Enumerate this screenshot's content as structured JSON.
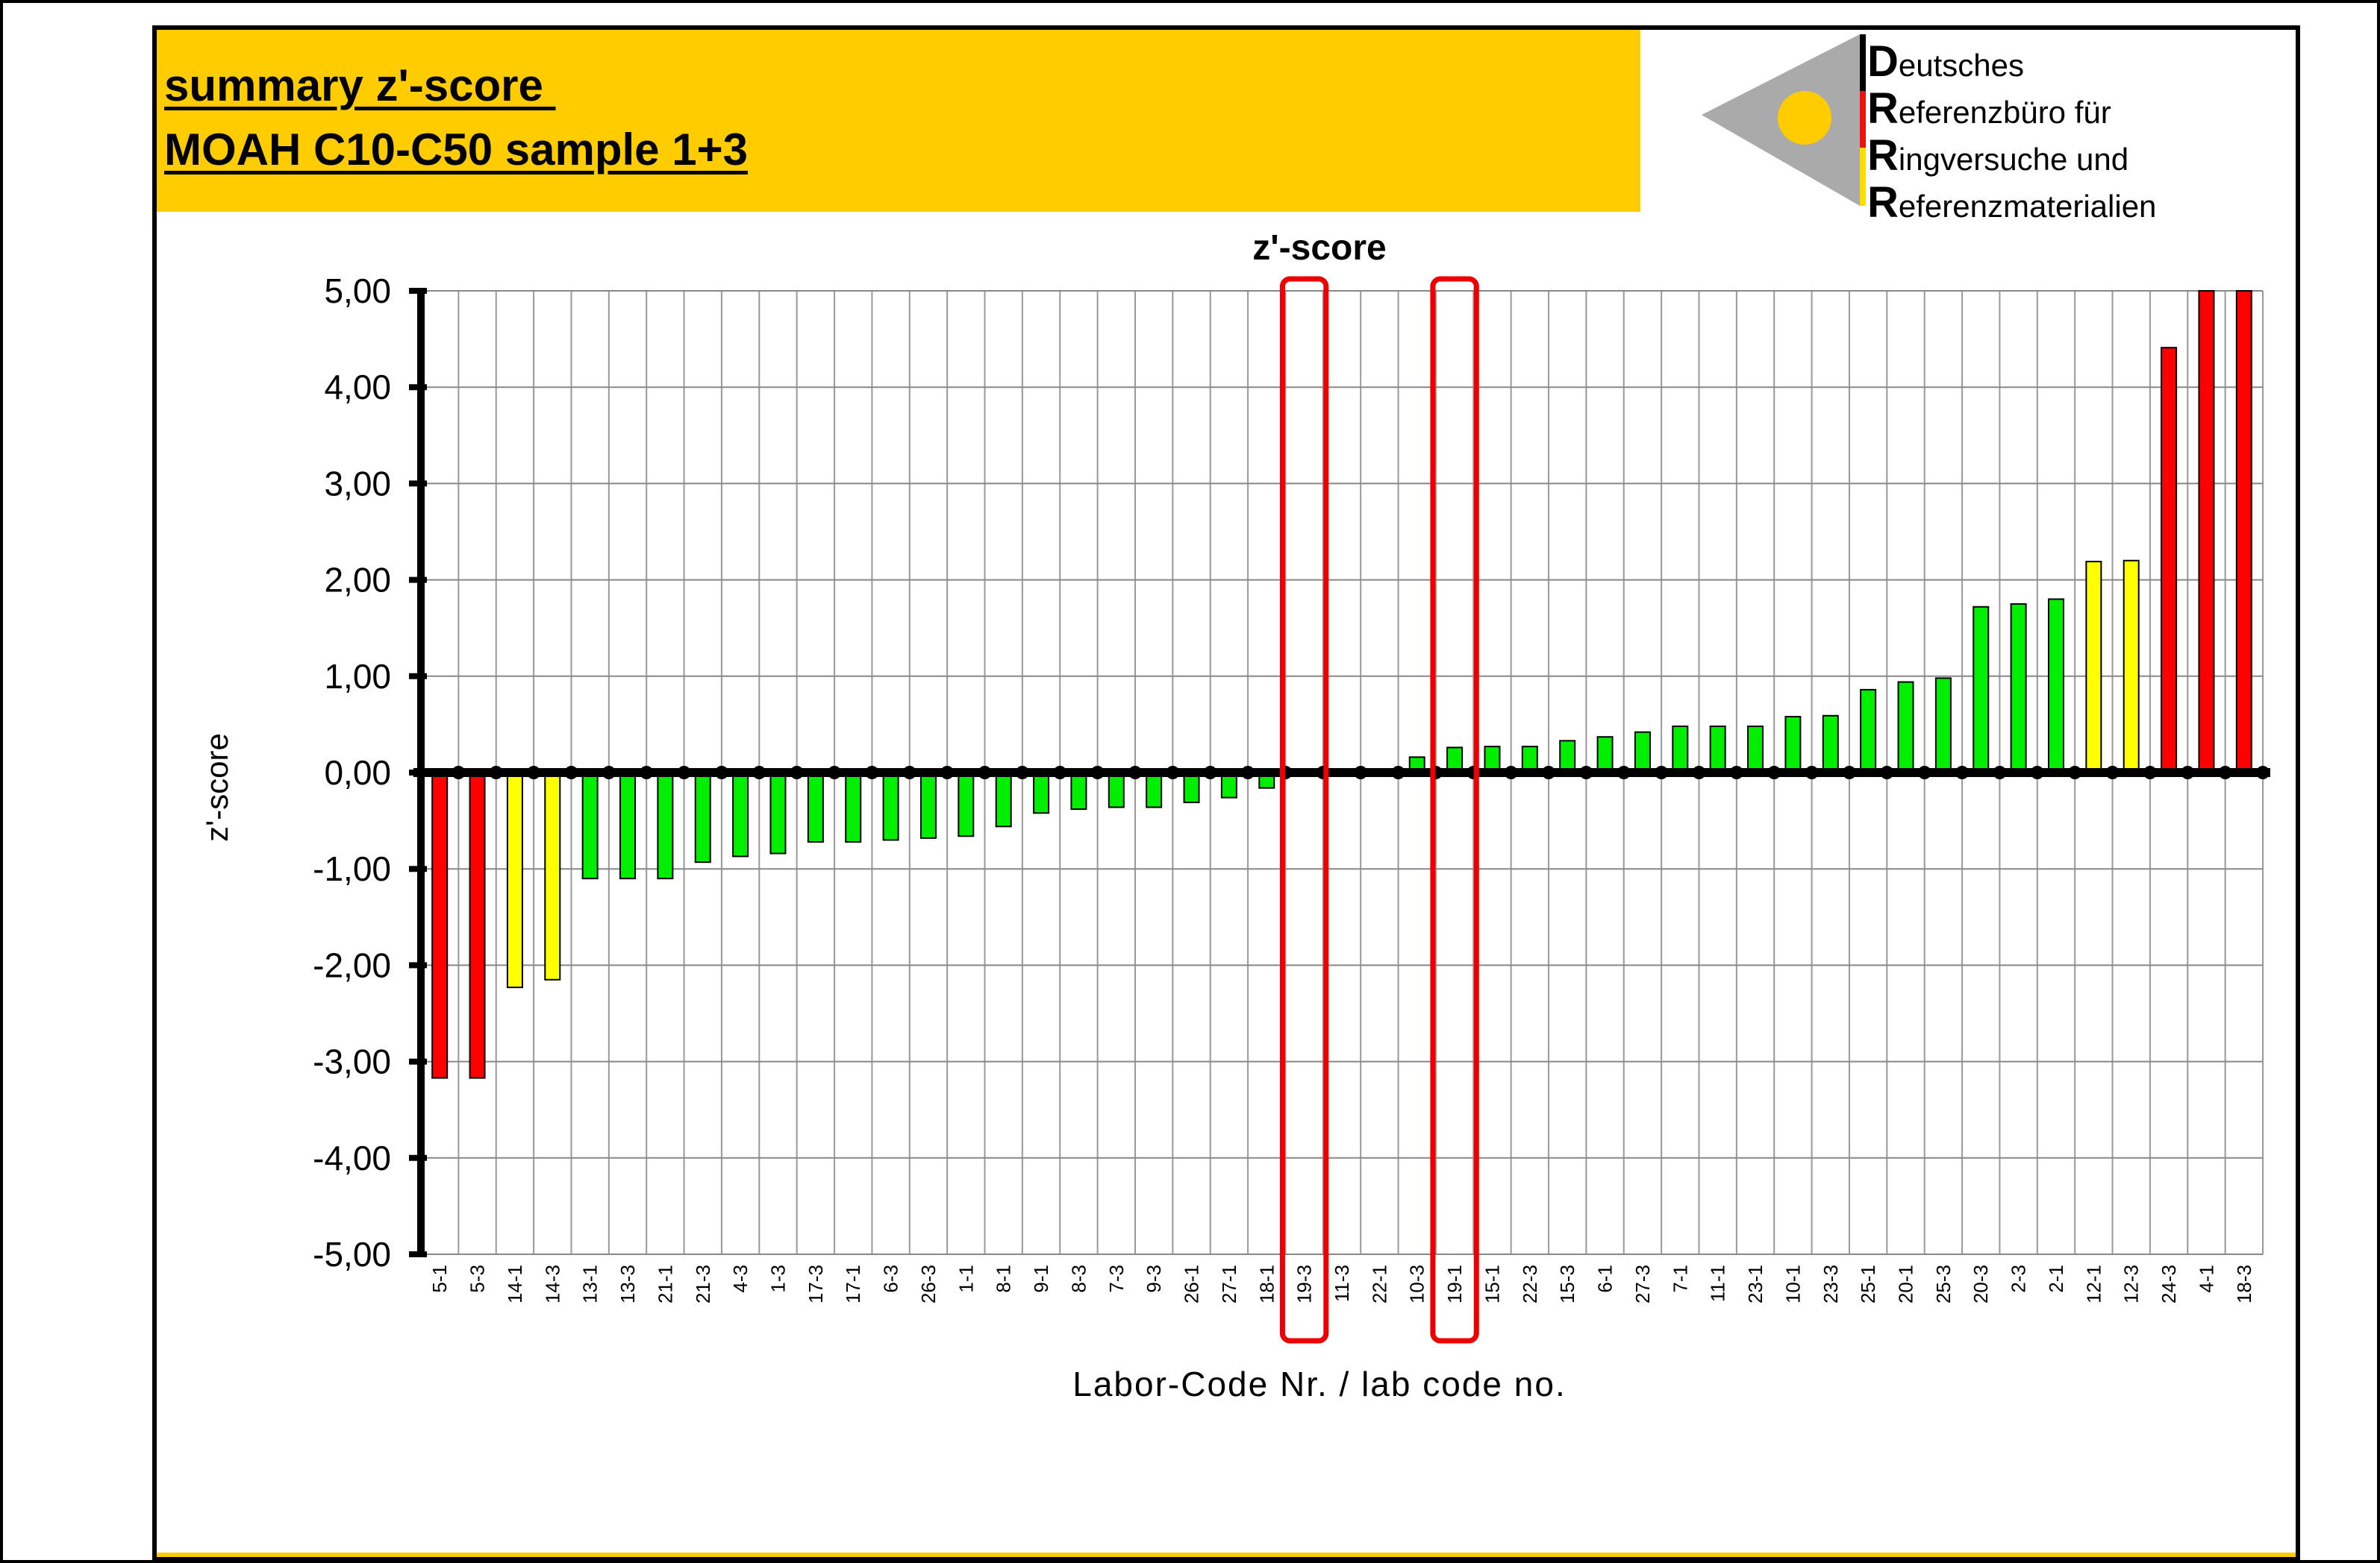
{
  "header": {
    "title_line1": "summary z'-score ",
    "title_line2": "MOAH C10-C50 sample 1+3",
    "accent_color": "#ffcc00"
  },
  "logo": {
    "letters": [
      "D",
      "R",
      "R",
      "R"
    ],
    "words": [
      "eutsches",
      "eferenzbüro für",
      "ingversuche und",
      "eferenzmaterialien"
    ],
    "flag_colors": [
      "#000000",
      "#ee1111",
      "#ffdd00"
    ],
    "triangle_color": "#aaaaaa",
    "circle_color": "#ffcc00"
  },
  "chart_data": {
    "type": "bar",
    "title": "z'-score",
    "xlabel": "Labor-Code Nr. / lab code no.",
    "ylabel": "z'-score",
    "ylim": [
      -5,
      5
    ],
    "yticks": [
      "5,00",
      "4,00",
      "3,00",
      "2,00",
      "1,00",
      "0,00",
      "-1,00",
      "-2,00",
      "-3,00",
      "-4,00",
      "-5,00"
    ],
    "ytick_values": [
      5,
      4,
      3,
      2,
      1,
      0,
      -1,
      -2,
      -3,
      -4,
      -5
    ],
    "grid": true,
    "categories": [
      "5-1",
      "5-3",
      "14-1",
      "14-3",
      "13-1",
      "13-3",
      "21-1",
      "21-3",
      "4-3",
      "1-3",
      "17-3",
      "17-1",
      "6-3",
      "26-3",
      "1-1",
      "8-1",
      "9-1",
      "8-3",
      "7-3",
      "9-3",
      "26-1",
      "27-1",
      "18-1",
      "19-3",
      "11-3",
      "22-1",
      "10-3",
      "19-1",
      "15-1",
      "22-3",
      "15-3",
      "6-1",
      "27-3",
      "7-1",
      "11-1",
      "23-1",
      "10-1",
      "23-3",
      "25-1",
      "20-1",
      "25-3",
      "20-3",
      "2-3",
      "2-1",
      "12-1",
      "12-3",
      "24-3",
      "4-1",
      "18-3"
    ],
    "values": [
      -3.17,
      -3.17,
      -2.23,
      -2.15,
      -1.1,
      -1.1,
      -1.1,
      -0.93,
      -0.87,
      -0.84,
      -0.72,
      -0.72,
      -0.7,
      -0.68,
      -0.66,
      -0.56,
      -0.42,
      -0.38,
      -0.36,
      -0.36,
      -0.31,
      -0.26,
      -0.16,
      null,
      0.0,
      0.0,
      0.16,
      0.26,
      0.27,
      0.27,
      0.33,
      0.37,
      0.42,
      0.48,
      0.48,
      0.48,
      0.58,
      0.59,
      0.86,
      0.94,
      0.98,
      1.72,
      1.75,
      1.8,
      2.19,
      2.2,
      4.41,
      5.0,
      5.0
    ],
    "colors": {
      "satisfactory": "#00ee00",
      "questionable": "#ffff00",
      "unsatisfactory": "#ff0000",
      "highlight_box": "#ee0000"
    },
    "thresholds": {
      "questionable": 2,
      "unsatisfactory": 3
    },
    "highlighted_categories": [
      "19-3",
      "19-1"
    ]
  }
}
